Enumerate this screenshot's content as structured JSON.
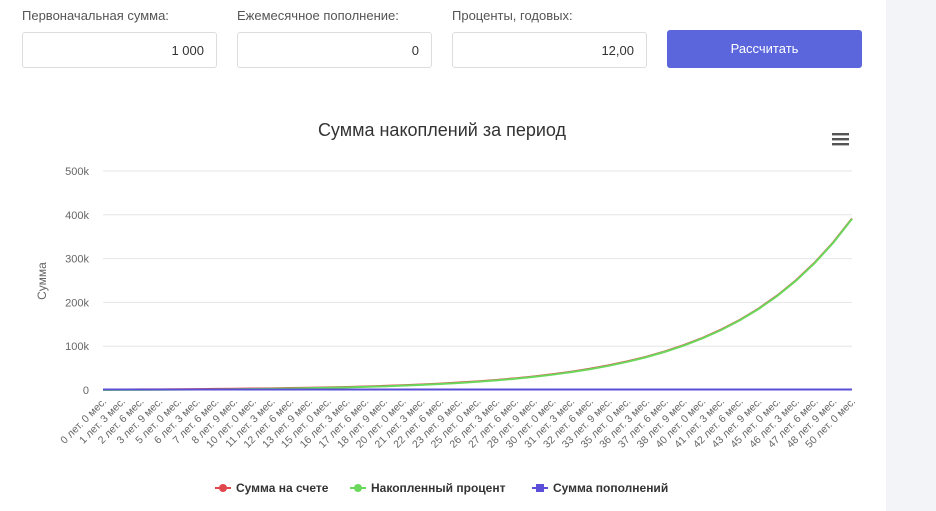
{
  "form": {
    "fields": [
      {
        "label": "Первоначальная сумма:",
        "value": "1 000"
      },
      {
        "label": "Ежемесячное пополнение:",
        "value": "0"
      },
      {
        "label": "Проценты, годовых:",
        "value": "12,00"
      }
    ],
    "button": "Рассчитать"
  },
  "chart_data": {
    "type": "line",
    "title": "Сумма накоплений за период",
    "y_label": "Сумма",
    "categories": [
      "0 лет. 0 мес.",
      "1 лет. 3 мес.",
      "2 лет. 6 мес.",
      "3 лет. 9 мес.",
      "5 лет. 0 мес.",
      "6 лет. 3 мес.",
      "7 лет. 6 мес.",
      "8 лет. 9 мес.",
      "10 лет. 0 мес.",
      "11 лет. 3 мес.",
      "12 лет. 6 мес.",
      "13 лет. 9 мес.",
      "15 лет. 0 мес.",
      "16 лет. 3 мес.",
      "17 лет. 6 мес.",
      "18 лет. 9 мес.",
      "20 лет. 0 мес.",
      "21 лет. 3 мес.",
      "22 лет. 6 мес.",
      "23 лет. 9 мес.",
      "25 лет. 0 мес.",
      "26 лет. 3 мес.",
      "27 лет. 6 мес.",
      "28 лет. 9 мес.",
      "30 лет. 0 мес.",
      "31 лет. 3 мес.",
      "32 лет. 6 мес.",
      "33 лет. 9 мес.",
      "35 лет. 0 мес.",
      "36 лет. 3 мес.",
      "37 лет. 6 мес.",
      "38 лет. 9 мес.",
      "40 лет. 0 мес.",
      "41 лет. 3 мес.",
      "42 лет. 6 мес.",
      "43 лет. 9 мес.",
      "45 лет. 0 мес.",
      "46 лет. 3 мес.",
      "47 лет. 6 мес.",
      "48 лет. 9 мес.",
      "50 лет. 0 мес."
    ],
    "series": [
      {
        "name": "Сумма на счете",
        "color": "#e0474c",
        "values": [
          1000,
          1161,
          1348,
          1565,
          1817,
          2109,
          2449,
          2843,
          3300,
          3832,
          4448,
          5164,
          5996,
          6961,
          8081,
          9382,
          10893,
          12646,
          14681,
          17045,
          19788,
          22974,
          26672,
          30965,
          35949,
          41736,
          48454,
          56254,
          65309,
          75821,
          88026,
          102195,
          118645,
          137744,
          159916,
          185657,
          215542,
          250237,
          290517,
          337281,
          391583
        ]
      },
      {
        "name": "Накопленный процент",
        "color": "#6ad85b",
        "values": [
          0,
          161,
          348,
          565,
          817,
          1109,
          1449,
          1843,
          2300,
          2832,
          3448,
          4164,
          4996,
          5961,
          7081,
          8382,
          9893,
          11646,
          13681,
          16045,
          18788,
          21974,
          25672,
          29965,
          34949,
          40736,
          47454,
          55254,
          64309,
          74821,
          87026,
          101195,
          117645,
          136744,
          158916,
          184657,
          214542,
          249237,
          289517,
          336281,
          390583
        ]
      },
      {
        "name": "Сумма пополнений",
        "color": "#5a4fd6",
        "values": [
          1000,
          1000,
          1000,
          1000,
          1000,
          1000,
          1000,
          1000,
          1000,
          1000,
          1000,
          1000,
          1000,
          1000,
          1000,
          1000,
          1000,
          1000,
          1000,
          1000,
          1000,
          1000,
          1000,
          1000,
          1000,
          1000,
          1000,
          1000,
          1000,
          1000,
          1000,
          1000,
          1000,
          1000,
          1000,
          1000,
          1000,
          1000,
          1000,
          1000,
          1000
        ]
      }
    ],
    "ylim": [
      0,
      500000
    ],
    "yticks": [
      0,
      {
        "value": 100000,
        "label": "100k"
      },
      {
        "value": 200000,
        "label": "200k"
      },
      {
        "value": 300000,
        "label": "300k"
      },
      {
        "value": 400000,
        "label": "400k"
      },
      {
        "value": 500000,
        "label": "500k"
      }
    ],
    "grid": true
  }
}
